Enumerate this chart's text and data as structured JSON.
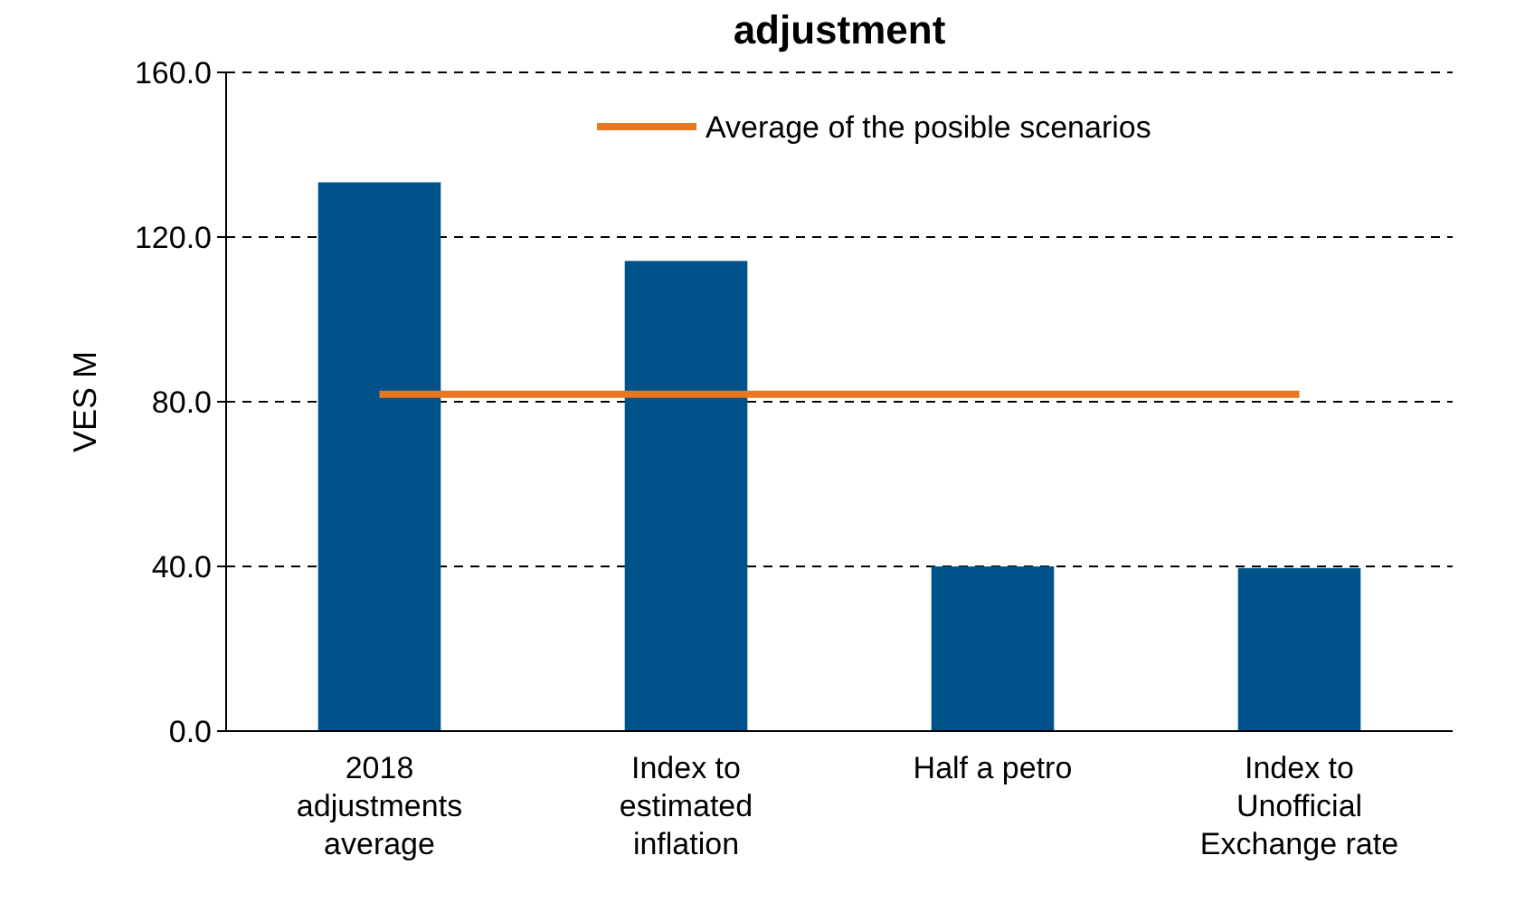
{
  "chart_data": {
    "type": "bar",
    "title": "adjustment",
    "ylabel": "VES M",
    "categories": [
      "2018 adjustments average",
      "Index to estimated inflation",
      "Half a petro",
      "Index to Unofficial Exchange rate"
    ],
    "series": [
      {
        "color": "#00538a",
        "values": [
          133.3,
          114.2,
          40,
          39.6
        ]
      },
      {
        "type": "line",
        "name": "Average of the posible scenarios",
        "color": "#e87722",
        "values": [
          81.8,
          81.8,
          81.8,
          81.8
        ]
      }
    ],
    "ylim": [
      0,
      160
    ],
    "yticks": [
      {
        "value": 0,
        "label": "0.0"
      },
      {
        "value": 40,
        "label": "40.0"
      },
      {
        "value": 80,
        "label": "80.0"
      },
      {
        "value": 120,
        "label": "120.0"
      },
      {
        "value": 160,
        "label": "160.0"
      }
    ],
    "grid": "y",
    "legend": "top",
    "marker": "none",
    "line_style": "solid"
  }
}
